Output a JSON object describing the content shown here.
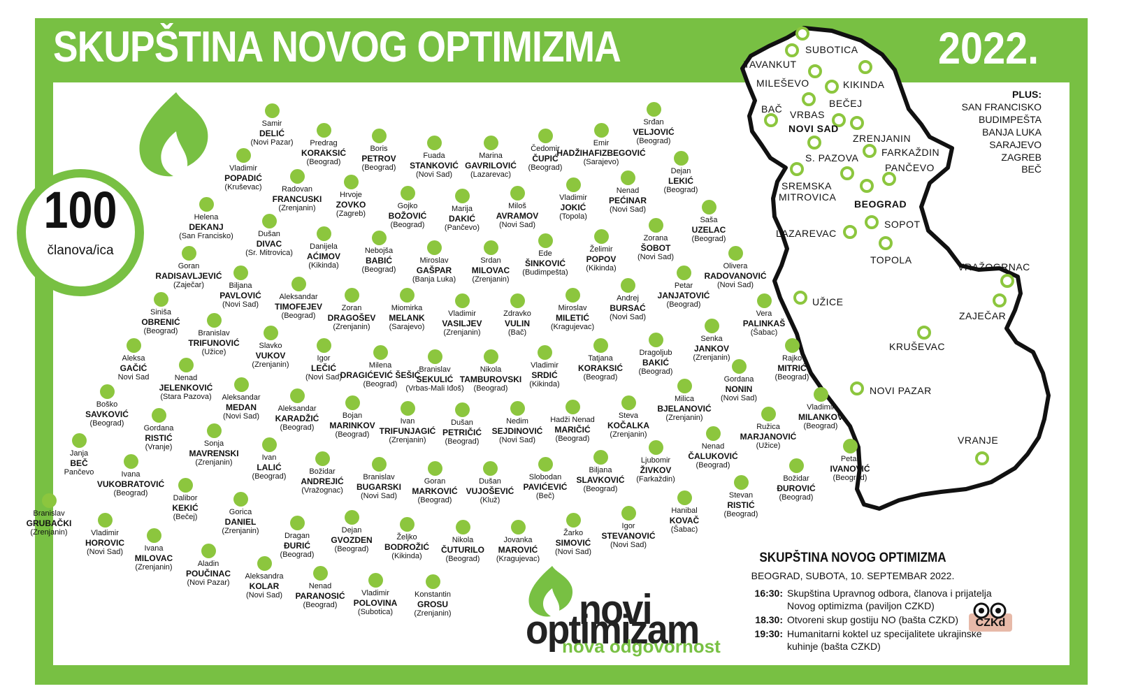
{
  "header": {
    "title": "SKUPŠTINA NOVOG OPTIMIZMA",
    "year": "2022."
  },
  "badge": {
    "number": "100",
    "label": "članova/ica"
  },
  "colors": {
    "brand_green": "#78c043",
    "dot_green": "#8cc63e",
    "text": "#111111"
  },
  "icons": [
    "flame-icon",
    "czkd-logo"
  ],
  "members": [
    {
      "first": "Samir",
      "last": "DELIĆ",
      "city": "(Novi Pazar)"
    },
    {
      "first": "Srđan",
      "last": "VELJOVIĆ",
      "city": "(Beograd)"
    },
    {
      "first": "Predrag",
      "last": "KORAKSIĆ",
      "city": "(Beograd)"
    },
    {
      "first": "Boris",
      "last": "PETROV",
      "city": "(Beograd)"
    },
    {
      "first": "Fuada",
      "last": "STANKOVIĆ",
      "city": "(Novi Sad)"
    },
    {
      "first": "Marina",
      "last": "GAVRILOVIĆ",
      "city": "(Lazarevac)"
    },
    {
      "first": "Čedomir",
      "last": "ČUPIĆ",
      "city": "(Beograd)"
    },
    {
      "first": "Emir",
      "last": "HADŽIHAFIZBEGOVIĆ",
      "city": "(Sarajevo)"
    },
    {
      "first": "Vladimir",
      "last": "POPADIĆ",
      "city": "(Kruševac)"
    },
    {
      "first": "Dejan",
      "last": "LEKIĆ",
      "city": "(Beograd)"
    },
    {
      "first": "Radovan",
      "last": "FRANCUSKI",
      "city": "(Zrenjanin)"
    },
    {
      "first": "Hrvoje",
      "last": "ZOVKO",
      "city": "(Zagreb)"
    },
    {
      "first": "Gojko",
      "last": "BOŽOVIĆ",
      "city": "(Beograd)"
    },
    {
      "first": "Marija",
      "last": "DAKIĆ",
      "city": "(Pančevo)"
    },
    {
      "first": "Miloš",
      "last": "AVRAMOV",
      "city": "(Novi Sad)"
    },
    {
      "first": "Vladimir",
      "last": "JOKIĆ",
      "city": "(Topola)"
    },
    {
      "first": "Nenad",
      "last": "PEĆINAR",
      "city": "(Novi Sad)"
    },
    {
      "first": "Helena",
      "last": "DEKANJ",
      "city": "(San Francisko)"
    },
    {
      "first": "Saša",
      "last": "UZELAC",
      "city": "(Beograd)"
    },
    {
      "first": "Dušan",
      "last": "DIVAC",
      "city": "(Sr. Mitrovica)"
    },
    {
      "first": "Danijela",
      "last": "AĆIMOV",
      "city": "(Kikinda)"
    },
    {
      "first": "Nebojša",
      "last": "BABIĆ",
      "city": "(Beograd)"
    },
    {
      "first": "Miroslav",
      "last": "GAŠPAR",
      "city": "(Banja Luka)"
    },
    {
      "first": "Srdan",
      "last": "MILOVAC",
      "city": "(Zrenjanin)"
    },
    {
      "first": "Ede",
      "last": "ŠINKOVIĆ",
      "city": "(Budimpešta)"
    },
    {
      "first": "Želimir",
      "last": "POPOV",
      "city": "(Kikinda)"
    },
    {
      "first": "Zorana",
      "last": "ŠOBOT",
      "city": "(Novi Sad)"
    },
    {
      "first": "Goran",
      "last": "RADISAVLJEVIĆ",
      "city": "(Zaječar)"
    },
    {
      "first": "Olivera",
      "last": "RADOVANOVIĆ",
      "city": "(Novi Sad)"
    },
    {
      "first": "Biljana",
      "last": "PAVLOVIĆ",
      "city": "(Novi Sad)"
    },
    {
      "first": "Aleksandar",
      "last": "TIMOFEJEV",
      "city": "(Beograd)"
    },
    {
      "first": "Zoran",
      "last": "DRAGOŠEV",
      "city": "(Zrenjanin)"
    },
    {
      "first": "Miomirka",
      "last": "MELANK",
      "city": "(Sarajevo)"
    },
    {
      "first": "Vladimir",
      "last": "VASILJEV",
      "city": "(Zrenjanin)"
    },
    {
      "first": "Zdravko",
      "last": "VULIN",
      "city": "(Bač)"
    },
    {
      "first": "Miroslav",
      "last": "MILETIĆ",
      "city": "(Kragujevac)"
    },
    {
      "first": "Andrej",
      "last": "BURSAĆ",
      "city": "(Novi Sad)"
    },
    {
      "first": "Petar",
      "last": "JANJATOVIĆ",
      "city": "(Beograd)"
    },
    {
      "first": "Siniša",
      "last": "OBRENIĆ",
      "city": "(Beograd)"
    },
    {
      "first": "Vera",
      "last": "PALINKAŠ",
      "city": "(Šabac)"
    },
    {
      "first": "Branislav",
      "last": "TRIFUNOVIĆ",
      "city": "(Užice)"
    },
    {
      "first": "Slavko",
      "last": "VUKOV",
      "city": "(Zrenjanin)"
    },
    {
      "first": "Igor",
      "last": "LEČIĆ",
      "city": "(Novi Sad)"
    },
    {
      "first": "Milena",
      "last": "DRAGIĆEVIĆ ŠEŠIĆ",
      "city": "(Beograd)"
    },
    {
      "first": "Branislav",
      "last": "SEKULIĆ",
      "city": "(Vrbas-Mali Iđoš)"
    },
    {
      "first": "Nikola",
      "last": "TAMBUROVSKI",
      "city": "(Beograd)"
    },
    {
      "first": "Vladimir",
      "last": "SRDIĆ",
      "city": "(Kikinda)"
    },
    {
      "first": "Tatjana",
      "last": "KORAKSIĆ",
      "city": "(Beograd)"
    },
    {
      "first": "Dragoljub",
      "last": "BAKIĆ",
      "city": "(Beograd)"
    },
    {
      "first": "Senka",
      "last": "JANKOV",
      "city": "(Zrenjanin)"
    },
    {
      "first": "Rajko",
      "last": "MITRIĆ",
      "city": "(Beograd)"
    },
    {
      "first": "Aleksa",
      "last": "GAČIĆ",
      "city": "Novi Sad"
    },
    {
      "first": "Nenad",
      "last": "JELENKOVIĆ",
      "city": "(Stara Pazova)"
    },
    {
      "first": "Aleksandar",
      "last": "MEDAN",
      "city": "(Novi Sad)"
    },
    {
      "first": "Gordana",
      "last": "NONIN",
      "city": "(Novi Sad)"
    },
    {
      "first": "Milica",
      "last": "BJELANOVIĆ",
      "city": "(Zrenjanin)"
    },
    {
      "first": "Boško",
      "last": "SAVKOVIĆ",
      "city": "(Beograd)"
    },
    {
      "first": "Aleksandar",
      "last": "KARADŽIĆ",
      "city": "(Beograd)"
    },
    {
      "first": "Bojan",
      "last": "MARINKOV",
      "city": "(Beograd)"
    },
    {
      "first": "Ivan",
      "last": "TRIFUNJAGIĆ",
      "city": "(Zrenjanin)"
    },
    {
      "first": "Dušan",
      "last": "PETRIČIĆ",
      "city": "(Beograd)"
    },
    {
      "first": "Nedim",
      "last": "SEJDINOVIĆ",
      "city": "(Novi Sad)"
    },
    {
      "first": "Hadži Nenad",
      "last": "MARIČIĆ",
      "city": "(Beograd)"
    },
    {
      "first": "Steva",
      "last": "KOČALKA",
      "city": "(Zrenjanin)"
    },
    {
      "first": "Vladimir",
      "last": "MILANKOV",
      "city": "(Beograd)"
    },
    {
      "first": "Gordana",
      "last": "RISTIĆ",
      "city": "(Vranje)"
    },
    {
      "first": "Ružica",
      "last": "MARJANOVIĆ",
      "city": "(Užice)"
    },
    {
      "first": "Janja",
      "last": "BEČ",
      "city": "Pančevo"
    },
    {
      "first": "Sonja",
      "last": "MAVRENSKI",
      "city": "(Zrenjanin)"
    },
    {
      "first": "Ivan",
      "last": "LALIĆ",
      "city": "(Beograd)"
    },
    {
      "first": "Ljubomir",
      "last": "ŽIVKOV",
      "city": "(Farkaždin)"
    },
    {
      "first": "Nenad",
      "last": "ČALUKOVIĆ",
      "city": "(Beograd)"
    },
    {
      "first": "Petar",
      "last": "IVANOVIĆ",
      "city": "(Beograd)"
    },
    {
      "first": "Ivana",
      "last": "VUKOBRATOVIĆ",
      "city": "(Beograd)"
    },
    {
      "first": "Božidar",
      "last": "ANDREJIĆ",
      "city": "(Vražognac)"
    },
    {
      "first": "Branislav",
      "last": "BUGARSKI",
      "city": "(Novi Sad)"
    },
    {
      "first": "Goran",
      "last": "MARKOVIĆ",
      "city": "(Beograd)"
    },
    {
      "first": "Dušan",
      "last": "VUJOŠEVIĆ",
      "city": "(Kluž)"
    },
    {
      "first": "Slobodan",
      "last": "PAVIĆEVIĆ",
      "city": "(Beč)"
    },
    {
      "first": "Biljana",
      "last": "SLAVKOVIĆ",
      "city": "(Beograd)"
    },
    {
      "first": "Božidar",
      "last": "ĐUROVIĆ",
      "city": "(Beograd)"
    },
    {
      "first": "Dalibor",
      "last": "KEKIĆ",
      "city": "(Bečej)"
    },
    {
      "first": "Stevan",
      "last": "RISTIĆ",
      "city": "(Beograd)"
    },
    {
      "first": "Hanibal",
      "last": "KOVAČ",
      "city": "(Šabac)"
    },
    {
      "first": "Branislav",
      "last": "GRUBAČKI",
      "city": "(Zrenjanin)"
    },
    {
      "first": "Gorica",
      "last": "DANIEL",
      "city": "(Zrenjanin)"
    },
    {
      "first": "Vladimir",
      "last": "HOROVIC",
      "city": "(Novi Sad)"
    },
    {
      "first": "Dragan",
      "last": "ĐURIĆ",
      "city": "(Beograd)"
    },
    {
      "first": "Dejan",
      "last": "GVOZDEN",
      "city": "(Beograd)"
    },
    {
      "first": "Željko",
      "last": "BODROŽIĆ",
      "city": "(Kikinda)"
    },
    {
      "first": "Nikola",
      "last": "ČUTURILO",
      "city": "(Beograd)"
    },
    {
      "first": "Jovanka",
      "last": "MAROVIĆ",
      "city": "(Kragujevac)"
    },
    {
      "first": "Žarko",
      "last": "SIMOVIĆ",
      "city": "(Novi Sad)"
    },
    {
      "first": "Igor",
      "last": "STEVANOVIĆ",
      "city": "(Novi Sad)"
    },
    {
      "first": "Ivana",
      "last": "MILOVAC",
      "city": "(Zrenjanin)"
    },
    {
      "first": "Aladin",
      "last": "POUČINAC",
      "city": "(Novi Pazar)"
    },
    {
      "first": "Aleksandra",
      "last": "KOLAR",
      "city": "(Novi Sad)"
    },
    {
      "first": "Nenad",
      "last": "PARANOSIĆ",
      "city": "(Beograd)"
    },
    {
      "first": "Vladimir",
      "last": "POLOVINA",
      "city": "(Subotica)"
    },
    {
      "first": "Konstantin",
      "last": "GROSU",
      "city": "(Zrenjanin)"
    }
  ],
  "map": {
    "cities": [
      {
        "name": "SUBOTICA",
        "bold": false
      },
      {
        "name": "TAVANKUT",
        "bold": false
      },
      {
        "name": "MILEŠEVO",
        "bold": false
      },
      {
        "name": "KIKINDA",
        "bold": false
      },
      {
        "name": "BEČEJ",
        "bold": false
      },
      {
        "name": "BAČ",
        "bold": false
      },
      {
        "name": "VRBAS",
        "bold": false
      },
      {
        "name": "NOVI SAD",
        "bold": true
      },
      {
        "name": "ZRENJANIN",
        "bold": false
      },
      {
        "name": "FARKAŽDIN",
        "bold": false
      },
      {
        "name": "S. PAZOVA",
        "bold": false
      },
      {
        "name": "PANČEVO",
        "bold": false
      },
      {
        "name": "SREMSKA",
        "bold": false
      },
      {
        "name": "MITROVICA",
        "bold": false
      },
      {
        "name": "BEOGRAD",
        "bold": true
      },
      {
        "name": "LAZAREVAC",
        "bold": false
      },
      {
        "name": "SOPOT",
        "bold": false
      },
      {
        "name": "TOPOLA",
        "bold": false
      },
      {
        "name": "VRAŽOGRNAC",
        "bold": false
      },
      {
        "name": "ZAJEČAR",
        "bold": false
      },
      {
        "name": "UŽICE",
        "bold": false
      },
      {
        "name": "KRUŠEVAC",
        "bold": false
      },
      {
        "name": "NOVI PAZAR",
        "bold": false
      },
      {
        "name": "VRANJE",
        "bold": false
      }
    ],
    "plus_title": "PLUS:",
    "plus_cities": [
      "SAN FRANCISKO",
      "BUDIMPEŠTA",
      "BANJA LUKA",
      "SARAJEVO",
      "ZAGREB",
      "BEČ"
    ]
  },
  "event": {
    "title": "SKUPŠTINA NOVOG OPTIMIZMA",
    "date": "BEOGRAD, SUBOTA, 10. SEPTEMBAR 2022.",
    "schedule": [
      {
        "time": "16:30:",
        "text": "Skupština Upravnog odbora, članova i prijatelja Novog optimizma (paviljon CZKD)"
      },
      {
        "time": "18.30:",
        "text": "Otvoreni skup gostiju NO (bašta CZKD)"
      },
      {
        "time": "19:30:",
        "text": "Humanitarni koktel uz specijalitete ukrajinske kuhinje (bašta CZKD)"
      }
    ]
  },
  "logo": {
    "line1": "novi",
    "line2": "optimizam",
    "tagline": "nova odgovornost",
    "partner": "CZKd"
  }
}
